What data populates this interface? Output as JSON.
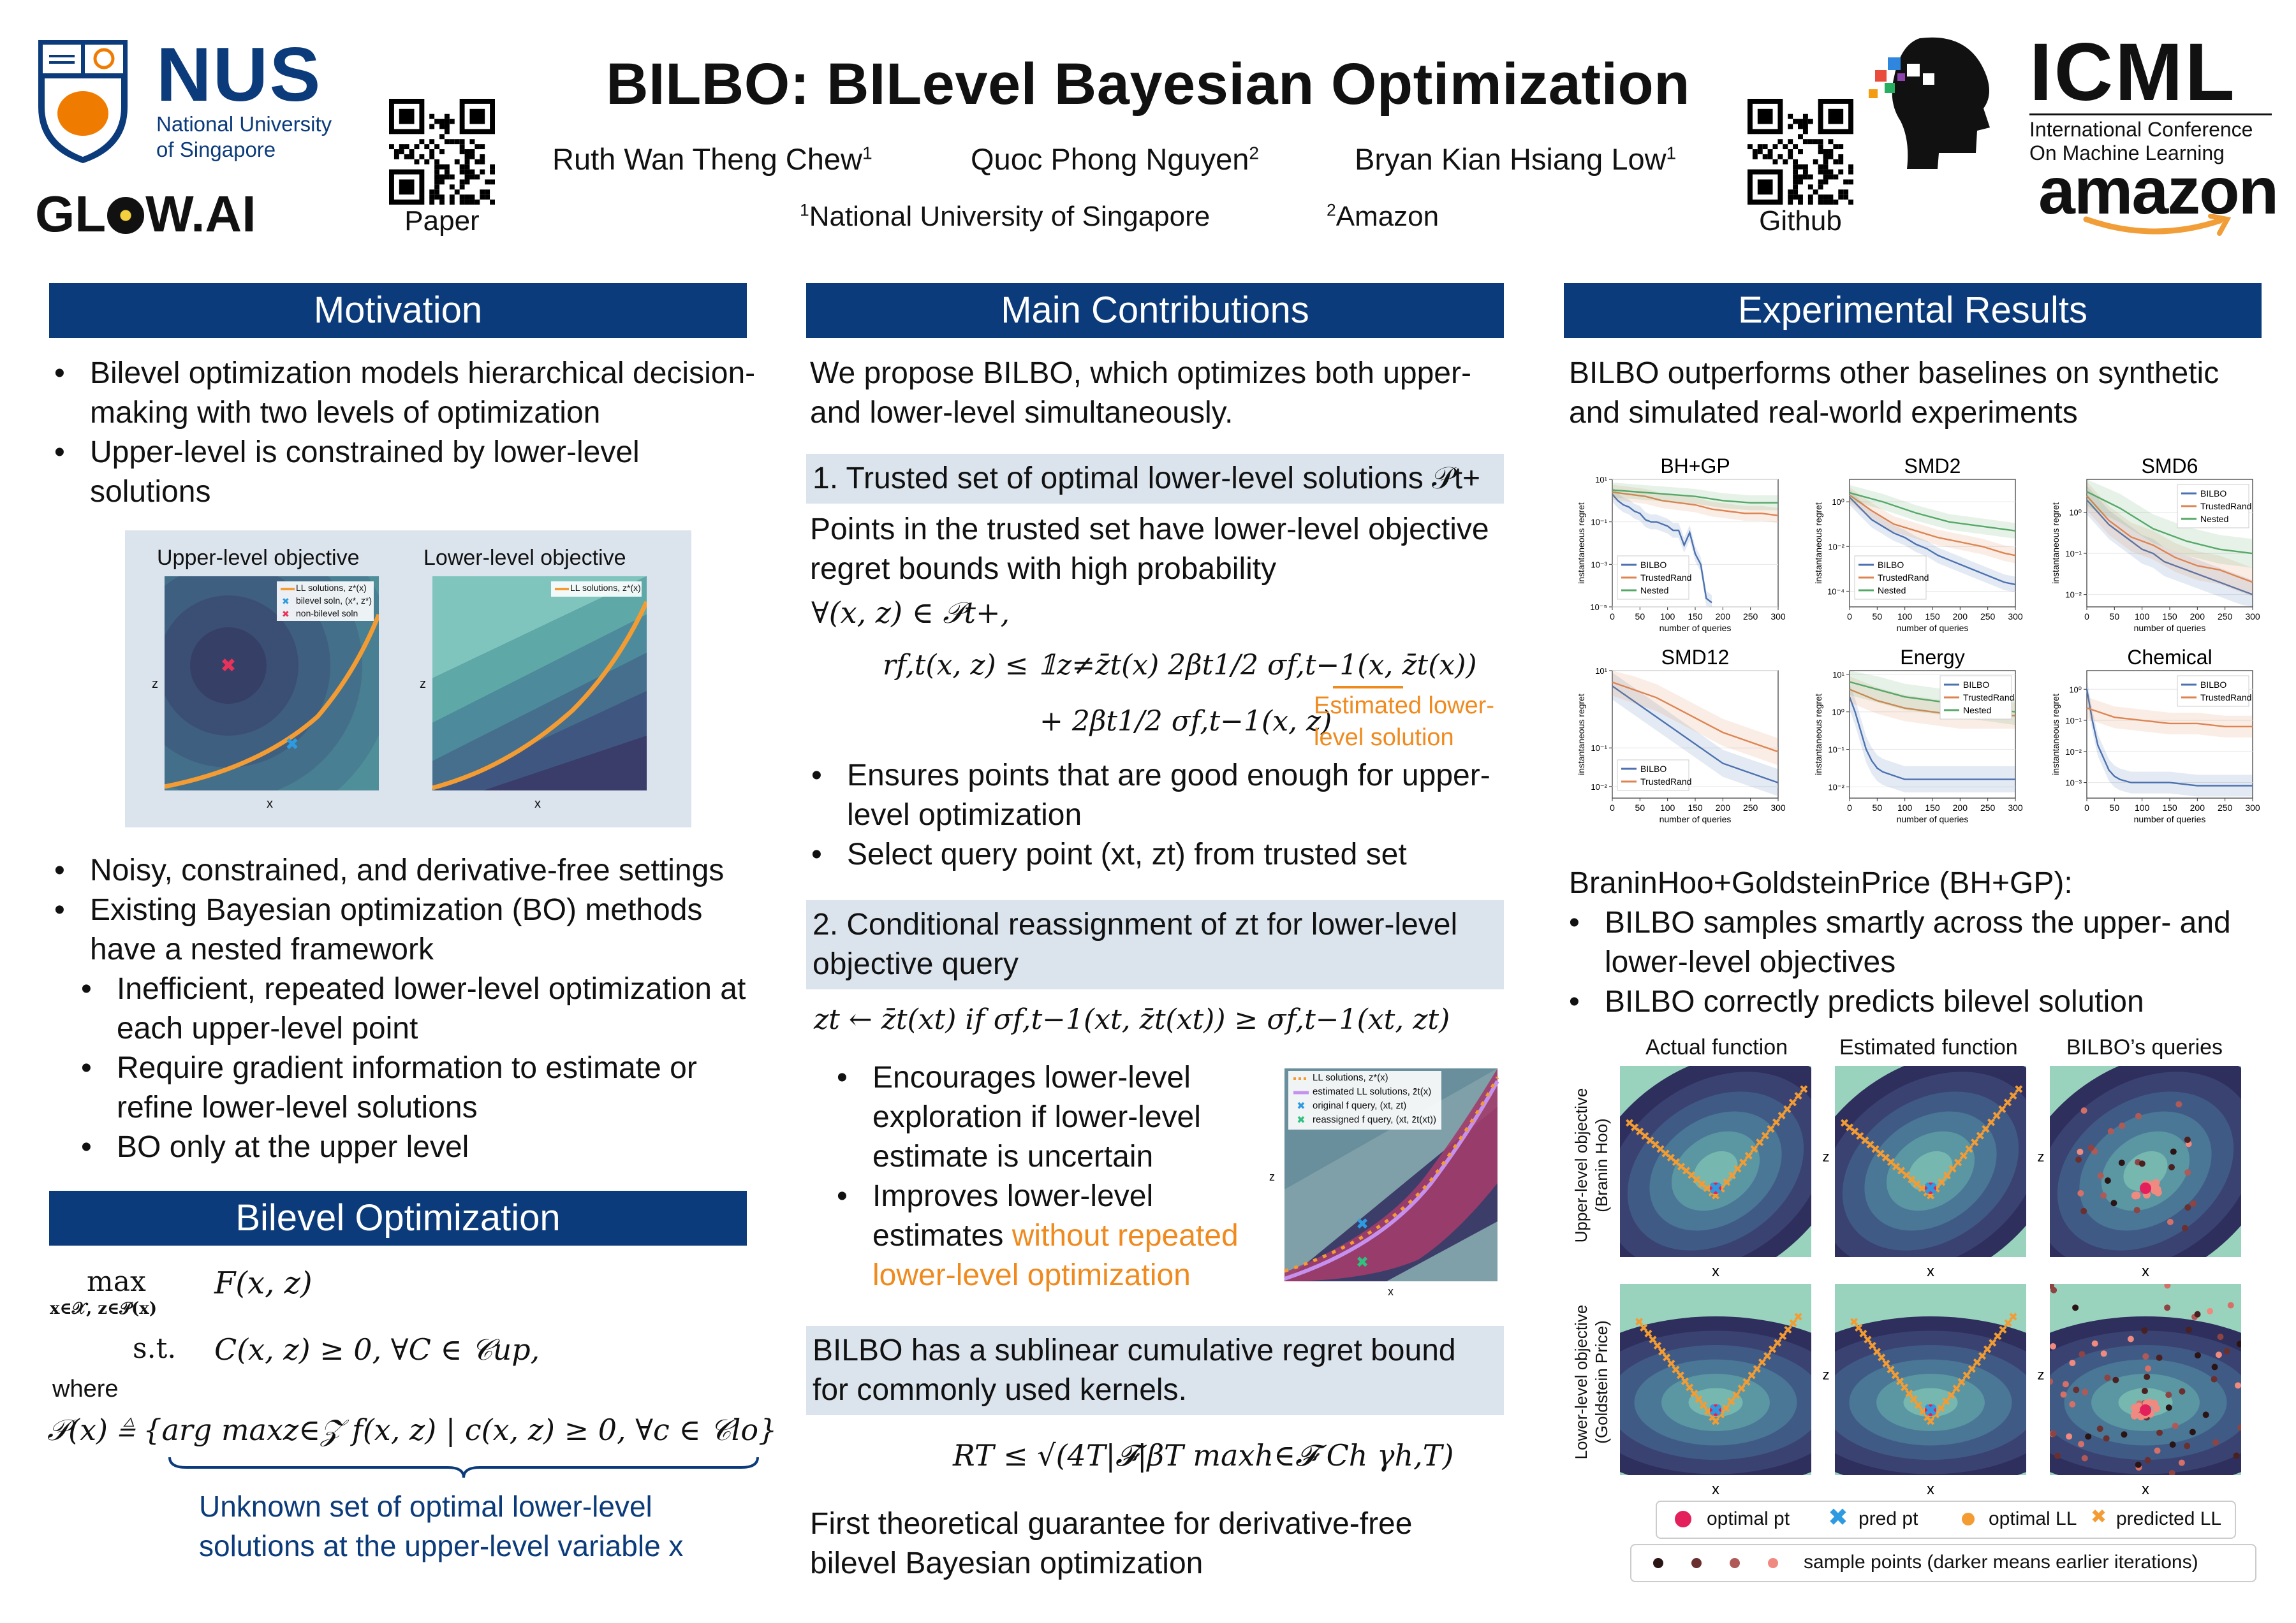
{
  "header": {
    "title": "BILBO: BILevel Bayesian Optimization",
    "authors": [
      {
        "name": "Ruth Wan Theng Chew",
        "sup": "1"
      },
      {
        "name": "Quoc Phong Nguyen",
        "sup": "2"
      },
      {
        "name": "Bryan Kian Hsiang Low",
        "sup": "1"
      }
    ],
    "affiliations": [
      {
        "sup": "1",
        "name": "National University of Singapore"
      },
      {
        "sup": "2",
        "name": "Amazon"
      }
    ],
    "qr_paper_label": "Paper",
    "qr_github_label": "Github",
    "nus": {
      "big": "NUS",
      "line1": "National University",
      "line2": "of Singapore"
    },
    "glow": {
      "left": "GL",
      "right": "W.AI"
    },
    "icml": {
      "big": "ICML",
      "line1": "International Conference",
      "line2": "On Machine Learning"
    },
    "amazon": "amazon",
    "colors": {
      "navy": "#0b3b7a",
      "orange": "#ef8a1e",
      "nus_orange": "#ef7c00"
    }
  },
  "motivation": {
    "heading": "Motivation",
    "bullets1": [
      "Bilevel optimization models hierarchical decision-making with two levels of optimization",
      "Upper-level is constrained by lower-level solutions"
    ],
    "fig": {
      "upper_title": "Upper-level objective",
      "lower_title": "Lower-level objective",
      "leg_ll": "LL solutions, z*(x)",
      "leg_bilevel": "bilevel soln, (x*, z*)",
      "leg_nonbilevel": "non-bilevel soln",
      "xlab": "x",
      "zlab": "z"
    },
    "bullets2": [
      "Noisy, constrained, and derivative-free settings",
      "Existing Bayesian optimization (BO) methods have a nested framework"
    ],
    "sub_bullets": [
      "Inefficient, repeated lower-level optimization at each upper-level point",
      "Require gradient information to estimate or refine lower-level solutions",
      "BO only at the upper level"
    ]
  },
  "bilevel": {
    "heading": "Bilevel Optimization",
    "max_label": "max",
    "max_sub": "x∈𝒳, z∈𝒫(x)",
    "obj": "F(x, z)",
    "st": "s.t.",
    "constraint": "C(x, z) ≥ 0,   ∀C ∈ 𝒞up,",
    "where": "where",
    "defn": "𝒫(x) ≜ {arg maxz∈𝒵 f(x, z) | c(x, z) ≥ 0,   ∀c ∈ 𝒞lo}",
    "note1": "Unknown set of optimal lower-level",
    "note2": "solutions at the upper-level variable x"
  },
  "contrib": {
    "heading": "Main Contributions",
    "intro": "We propose BILBO, which optimizes both upper- and lower-level simultaneously.",
    "c1_title": "1. Trusted set of optimal lower-level solutions 𝒫t+",
    "c1_text": "Points in the trusted set have lower-level objective regret bounds with high probability",
    "c1_forall": "∀(x, z) ∈ 𝒫t+,",
    "c1_eq1": "rf,t(x, z) ≤ 𝟙z≠z̄t(x) 2βt1/2 σf,t−1(x, z̄t(x))",
    "c1_eq2": "+ 2βt1/2 σf,t−1(x, z)",
    "c1_annot1": "Estimated lower-",
    "c1_annot2": "level solution",
    "c1_bullets": [
      "Ensures points that are good enough for upper-level optimization",
      "Select query point (xt, zt) from trusted set"
    ],
    "c2_title": "2. Conditional reassignment of zt for lower-level objective query",
    "c2_eq": "zt ← z̄t(xt)     if σf,t−1(xt, z̄t(xt)) ≥ σf,t−1(xt, zt)",
    "c2_b1": "Encourages lower-level exploration if lower-level estimate is uncertain",
    "c2_b2_pre": "Improves lower-level estimates",
    "c2_b2_hl": "without repeated lower-level optimization",
    "c2_fig_leg": [
      "LL solutions, z*(x)",
      "estimated LL solutions, z̄t(x)",
      "original f query, (xt, zt)",
      "reassigned f query, (xt, z̄t(xt))"
    ],
    "c3_title": "BILBO has a sublinear cumulative regret bound for commonly used kernels.",
    "c3_eq": "RT ≤ √(4T|𝓕|βT maxh∈𝓕 Ch γh,T)",
    "c3_final": "First theoretical guarantee for derivative-free bilevel Bayesian optimization"
  },
  "results": {
    "heading": "Experimental Results",
    "intro": "BILBO outperforms other baselines on synthetic and simulated real-world experiments",
    "yaxis": "instantaneous regret",
    "xaxis": "number of queries",
    "bh_header": "BraninHoo+GoldsteinPrice (BH+GP):",
    "bh_bullets": [
      "BILBO samples smartly across the upper- and lower-level objectives",
      "BILBO correctly predicts bilevel solution"
    ],
    "grid_cols": [
      "Actual function",
      "Estimated function",
      "BILBO’s queries"
    ],
    "grid_rows": [
      "Upper-level objective (Branin Hoo)",
      "Lower-level objective (Goldstein Price)"
    ],
    "row_label_lines": [
      [
        "Upper-level objective",
        "(Branin Hoo)"
      ],
      [
        "Lower-level objective",
        "(Goldstein Price)"
      ]
    ],
    "ax_x": "x",
    "ax_z": "z",
    "legend1": [
      "optimal pt",
      "pred pt",
      "optimal LL",
      "predicted LL"
    ],
    "legend2": "sample points (darker means earlier iterations)"
  },
  "chart_data": [
    {
      "type": "line",
      "title": "BH+GP",
      "xlabel": "number of queries",
      "ylabel": "instantaneous regret",
      "x_ticks": [
        0,
        50,
        100,
        150,
        200,
        250,
        300
      ],
      "y_ticks": [
        "10¹",
        "10⁻¹",
        "10⁻³",
        "10⁻⁵"
      ],
      "y_exp": [
        1,
        -1,
        -3,
        -5
      ],
      "xlim": [
        0,
        300
      ],
      "ylim_log10": [
        -5,
        1
      ],
      "series": [
        {
          "name": "BILBO",
          "color": "#4c72b0",
          "x": [
            0,
            10,
            20,
            30,
            40,
            50,
            60,
            70,
            80,
            90,
            100,
            110,
            120,
            130,
            140,
            150,
            160,
            170,
            180
          ],
          "logy": [
            0.3,
            0,
            -0.2,
            -0.3,
            -0.5,
            -0.6,
            -0.9,
            -1.0,
            -1.0,
            -1.1,
            -1.2,
            -1.4,
            -1.4,
            -2.1,
            -1.5,
            -2.5,
            -3.0,
            -4.6,
            -4.8
          ]
        },
        {
          "name": "TrustedRand",
          "color": "#dd8452",
          "x": [
            0,
            30,
            60,
            90,
            120,
            150,
            180,
            210,
            240,
            270,
            300
          ],
          "logy": [
            0.4,
            0.3,
            0.2,
            0.0,
            -0.1,
            -0.2,
            -0.4,
            -0.5,
            -0.6,
            -0.6,
            -0.7
          ]
        },
        {
          "name": "Nested",
          "color": "#55a868",
          "x": [
            0,
            50,
            100,
            150,
            200,
            250,
            300
          ],
          "logy": [
            0.5,
            0.4,
            0.3,
            0.2,
            0.0,
            -0.1,
            -0.1
          ]
        }
      ]
    },
    {
      "type": "line",
      "title": "SMD2",
      "xlabel": "number of queries",
      "ylabel": "instantaneous regret",
      "x_ticks": [
        0,
        50,
        100,
        150,
        200,
        250,
        300
      ],
      "y_ticks": [
        "10⁰",
        "10⁻²",
        "10⁻⁴"
      ],
      "y_exp": [
        0,
        -2,
        -4
      ],
      "xlim": [
        0,
        300
      ],
      "ylim_log10": [
        -4.7,
        1
      ],
      "series": [
        {
          "name": "BILBO",
          "color": "#4c72b0",
          "x": [
            0,
            20,
            40,
            60,
            80,
            100,
            120,
            140,
            160,
            180,
            200,
            220,
            240,
            260,
            280,
            300
          ],
          "logy": [
            0.2,
            -0.3,
            -0.8,
            -1.1,
            -1.4,
            -1.6,
            -1.9,
            -2.1,
            -2.4,
            -2.6,
            -2.8,
            -3.0,
            -3.2,
            -3.4,
            -3.6,
            -3.7
          ]
        },
        {
          "name": "TrustedRand",
          "color": "#dd8452",
          "x": [
            0,
            40,
            80,
            120,
            160,
            200,
            240,
            280,
            300
          ],
          "logy": [
            0.3,
            -0.4,
            -1.0,
            -1.3,
            -1.6,
            -1.8,
            -2.0,
            -2.3,
            -2.4
          ]
        },
        {
          "name": "Nested",
          "color": "#55a868",
          "x": [
            0,
            60,
            120,
            180,
            240,
            300
          ],
          "logy": [
            0.4,
            0.0,
            -0.5,
            -0.9,
            -1.1,
            -1.3
          ]
        }
      ]
    },
    {
      "type": "line",
      "title": "SMD6",
      "xlabel": "number of queries",
      "ylabel": "instantaneous regret",
      "x_ticks": [
        0,
        50,
        100,
        150,
        200,
        250,
        300
      ],
      "y_ticks": [
        "10⁰",
        "10⁻¹",
        "10⁻²"
      ],
      "y_exp": [
        0,
        -1,
        -2
      ],
      "xlim": [
        0,
        300
      ],
      "ylim_log10": [
        -2.3,
        0.8
      ],
      "series": [
        {
          "name": "BILBO",
          "color": "#4c72b0",
          "x": [
            0,
            20,
            40,
            60,
            80,
            100,
            120,
            140,
            160,
            180,
            200,
            220,
            240,
            260,
            280,
            300
          ],
          "logy": [
            0.3,
            0.0,
            -0.3,
            -0.5,
            -0.7,
            -0.9,
            -1.0,
            -1.2,
            -1.3,
            -1.4,
            -1.5,
            -1.6,
            -1.7,
            -1.8,
            -1.9,
            -2.0
          ]
        },
        {
          "name": "TrustedRand",
          "color": "#dd8452",
          "x": [
            0,
            40,
            80,
            120,
            160,
            200,
            240,
            280,
            300
          ],
          "logy": [
            0.4,
            -0.2,
            -0.6,
            -0.8,
            -1.1,
            -1.3,
            -1.4,
            -1.6,
            -1.7
          ]
        },
        {
          "name": "Nested",
          "color": "#55a868",
          "x": [
            0,
            60,
            120,
            180,
            240,
            300
          ],
          "logy": [
            0.5,
            0.1,
            -0.4,
            -0.7,
            -0.9,
            -1.0
          ]
        }
      ]
    },
    {
      "type": "line",
      "title": "SMD12",
      "xlabel": "number of queries",
      "ylabel": "instantaneous regret",
      "x_ticks": [
        0,
        50,
        100,
        150,
        200,
        250,
        300
      ],
      "y_ticks": [
        "10¹",
        "10⁻¹",
        "10⁻²"
      ],
      "y_exp": [
        1,
        -1,
        -2
      ],
      "xlim": [
        0,
        300
      ],
      "ylim_log10": [
        -2.3,
        1
      ],
      "series": [
        {
          "name": "BILBO",
          "color": "#4c72b0",
          "x": [
            0,
            20,
            40,
            60,
            80,
            100,
            120,
            140,
            160,
            180,
            200,
            220,
            240,
            260,
            280,
            300
          ],
          "logy": [
            0.6,
            0.4,
            0.2,
            0.0,
            -0.2,
            -0.4,
            -0.6,
            -0.8,
            -1.0,
            -1.2,
            -1.4,
            -1.5,
            -1.6,
            -1.7,
            -1.8,
            -1.9
          ]
        },
        {
          "name": "TrustedRand",
          "color": "#dd8452",
          "x": [
            0,
            40,
            80,
            120,
            160,
            200,
            240,
            280,
            300
          ],
          "logy": [
            0.7,
            0.5,
            0.3,
            0.0,
            -0.3,
            -0.6,
            -0.8,
            -1.0,
            -1.1
          ]
        }
      ]
    },
    {
      "type": "line",
      "title": "Energy",
      "xlabel": "number of queries",
      "ylabel": "instantaneous regret",
      "x_ticks": [
        0,
        50,
        100,
        150,
        200,
        250,
        300
      ],
      "y_ticks": [
        "10¹",
        "10⁰",
        "10⁻¹",
        "10⁻²"
      ],
      "y_exp": [
        1,
        0,
        -1,
        -2
      ],
      "xlim": [
        0,
        300
      ],
      "ylim_log10": [
        -2.3,
        1.1
      ],
      "series": [
        {
          "name": "BILBO",
          "color": "#4c72b0",
          "x": [
            0,
            10,
            20,
            30,
            40,
            50,
            60,
            80,
            100,
            150,
            200,
            250,
            300
          ],
          "logy": [
            0.4,
            0.0,
            -0.5,
            -1.0,
            -1.3,
            -1.5,
            -1.6,
            -1.7,
            -1.8,
            -1.8,
            -1.8,
            -1.8,
            -1.8
          ]
        },
        {
          "name": "TrustedRand",
          "color": "#dd8452",
          "x": [
            0,
            50,
            100,
            150,
            200,
            250,
            300
          ],
          "logy": [
            0.6,
            0.3,
            0.1,
            0.0,
            -0.1,
            -0.1,
            -0.1
          ]
        },
        {
          "name": "Nested",
          "color": "#55a868",
          "x": [
            0,
            50,
            100,
            150,
            200,
            250,
            300
          ],
          "logy": [
            0.8,
            0.6,
            0.4,
            0.3,
            0.2,
            0.1,
            0.0
          ]
        }
      ]
    },
    {
      "type": "line",
      "title": "Chemical",
      "xlabel": "number of queries",
      "ylabel": "instantaneous regret",
      "x_ticks": [
        0,
        50,
        100,
        150,
        200,
        250,
        300
      ],
      "y_ticks": [
        "10⁰",
        "10⁻¹",
        "10⁻²",
        "10⁻³"
      ],
      "y_exp": [
        0,
        -1,
        -2,
        -3
      ],
      "xlim": [
        0,
        300
      ],
      "ylim_log10": [
        -3.5,
        0.6
      ],
      "series": [
        {
          "name": "BILBO",
          "color": "#4c72b0",
          "x": [
            0,
            10,
            20,
            30,
            40,
            50,
            60,
            80,
            100,
            150,
            200,
            250,
            300
          ],
          "logy": [
            0.0,
            -1.0,
            -1.8,
            -2.2,
            -2.6,
            -2.8,
            -2.9,
            -3.0,
            -3.0,
            -3.0,
            -3.1,
            -3.1,
            -3.1
          ]
        },
        {
          "name": "TrustedRand",
          "color": "#dd8452",
          "x": [
            0,
            50,
            100,
            150,
            200,
            250,
            300
          ],
          "logy": [
            -0.6,
            -0.9,
            -1.0,
            -1.1,
            -1.1,
            -1.2,
            -1.2
          ]
        }
      ]
    }
  ]
}
